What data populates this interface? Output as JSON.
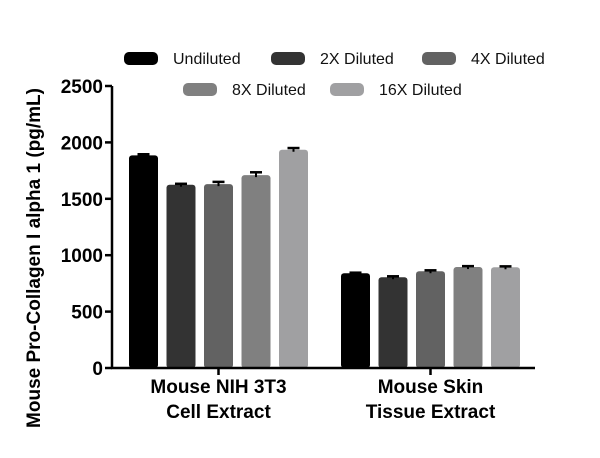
{
  "chart_data": {
    "type": "bar",
    "title": "",
    "xlabel": "",
    "ylabel": "Mouse Pro-Collagen I alpha 1 (pg/mL)",
    "ylim": [
      0,
      2500
    ],
    "yticks": [
      0,
      500,
      1000,
      1500,
      2000,
      2500
    ],
    "categories": [
      "Mouse NIH 3T3\nCell Extract",
      "Mouse Skin\nTissue Extract"
    ],
    "legend_position": "top",
    "grid": false,
    "series": [
      {
        "name": "Undiluted",
        "color": "#000000",
        "values": [
          1885,
          840
        ],
        "errors": [
          10,
          5
        ]
      },
      {
        "name": "2X Diluted",
        "color": "#333333",
        "values": [
          1625,
          805
        ],
        "errors": [
          8,
          8
        ]
      },
      {
        "name": "4X Diluted",
        "color": "#626262",
        "values": [
          1630,
          858
        ],
        "errors": [
          20,
          8
        ]
      },
      {
        "name": "8X Diluted",
        "color": "#808080",
        "values": [
          1710,
          895
        ],
        "errors": [
          25,
          8
        ]
      },
      {
        "name": "16X Diluted",
        "color": "#a0a0a2",
        "values": [
          1935,
          893
        ],
        "errors": [
          15,
          8
        ]
      }
    ]
  }
}
